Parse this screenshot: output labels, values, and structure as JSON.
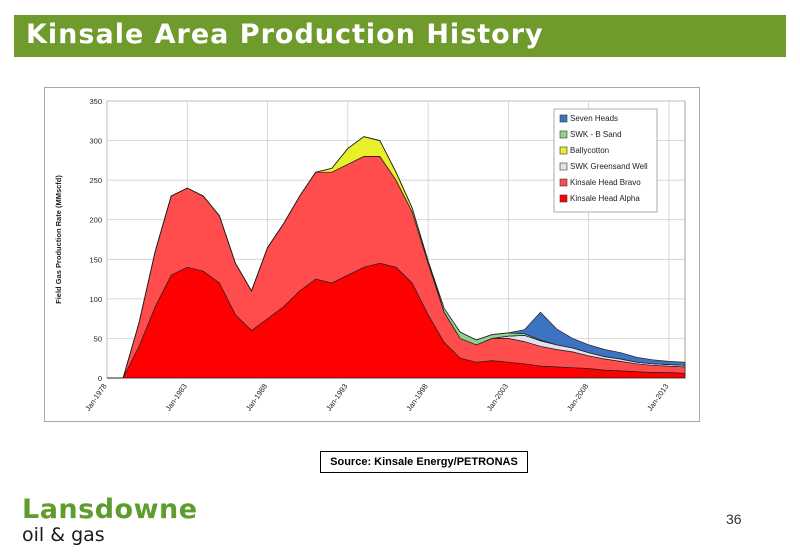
{
  "page": {
    "title": "Kinsale Area Production History",
    "source": "Source: Kinsale Energy/PETRONAS",
    "page_number": "36",
    "logo": {
      "main": "Lansdowne",
      "sub": "oil & gas"
    },
    "colors": {
      "title_bar": "#6f9a2c",
      "logo_green": "#5d9c2d"
    }
  },
  "chart_data": {
    "type": "area",
    "title": "",
    "xlabel": "",
    "ylabel": "Field Gas Production Rate (MMscfd)",
    "ylim": [
      0,
      350
    ],
    "yticks": [
      0,
      50,
      100,
      150,
      200,
      250,
      300,
      350
    ],
    "xlim": [
      1978,
      2014
    ],
    "xticks": [
      {
        "label": "Jan-1978",
        "value": 1978
      },
      {
        "label": "Jan-1983",
        "value": 1983
      },
      {
        "label": "Jan-1988",
        "value": 1988
      },
      {
        "label": "Jan-1993",
        "value": 1993
      },
      {
        "label": "Jan-1998",
        "value": 1998
      },
      {
        "label": "Jan-2003",
        "value": 2003
      },
      {
        "label": "Jan-2008",
        "value": 2008
      },
      {
        "label": "Jan-2013",
        "value": 2013
      }
    ],
    "stacked": true,
    "grid": true,
    "legend_position": "top-right",
    "x": [
      1978,
      1979,
      1980,
      1981,
      1982,
      1983,
      1984,
      1985,
      1986,
      1987,
      1988,
      1989,
      1990,
      1991,
      1992,
      1993,
      1994,
      1995,
      1996,
      1997,
      1998,
      1999,
      2000,
      2001,
      2002,
      2003,
      2004,
      2005,
      2006,
      2007,
      2008,
      2009,
      2010,
      2011,
      2012,
      2013,
      2014
    ],
    "series": [
      {
        "name": "Kinsale Head Alpha",
        "color": "#ff0000",
        "values": [
          0,
          0,
          40,
          90,
          130,
          140,
          135,
          120,
          80,
          60,
          75,
          90,
          110,
          125,
          120,
          130,
          140,
          145,
          140,
          120,
          80,
          45,
          25,
          20,
          22,
          20,
          18,
          15,
          14,
          13,
          12,
          10,
          9,
          8,
          7,
          7,
          6
        ]
      },
      {
        "name": "Kinsale Head Bravo",
        "color": "#ff4d4d",
        "values": [
          0,
          0,
          30,
          70,
          100,
          100,
          95,
          85,
          65,
          50,
          90,
          105,
          120,
          135,
          140,
          140,
          140,
          135,
          110,
          90,
          65,
          38,
          25,
          22,
          28,
          30,
          28,
          25,
          22,
          20,
          16,
          14,
          12,
          10,
          9,
          8,
          8
        ]
      },
      {
        "name": "SWK Greensand Well",
        "color": "#e2e2ee",
        "values": [
          0,
          0,
          0,
          0,
          0,
          0,
          0,
          0,
          0,
          0,
          0,
          0,
          0,
          0,
          0,
          0,
          0,
          0,
          0,
          0,
          0,
          0,
          0,
          0,
          0,
          3,
          8,
          7,
          6,
          5,
          4,
          3,
          3,
          2,
          2,
          2,
          2
        ]
      },
      {
        "name": "Ballycotton",
        "color": "#e9ef2a",
        "values": [
          0,
          0,
          0,
          0,
          0,
          0,
          0,
          0,
          0,
          0,
          0,
          0,
          0,
          0,
          5,
          20,
          25,
          20,
          10,
          5,
          3,
          0,
          0,
          0,
          0,
          0,
          0,
          0,
          0,
          0,
          0,
          0,
          0,
          0,
          0,
          0,
          0
        ]
      },
      {
        "name": "SWK - B Sand",
        "color": "#8fd18f",
        "values": [
          0,
          0,
          0,
          0,
          0,
          0,
          0,
          0,
          0,
          0,
          0,
          0,
          0,
          0,
          0,
          0,
          0,
          0,
          0,
          0,
          0,
          5,
          8,
          6,
          5,
          4,
          2,
          1,
          0,
          0,
          0,
          0,
          0,
          0,
          0,
          0,
          0
        ]
      },
      {
        "name": "Seven Heads",
        "color": "#3d74c2",
        "values": [
          0,
          0,
          0,
          0,
          0,
          0,
          0,
          0,
          0,
          0,
          0,
          0,
          0,
          0,
          0,
          0,
          0,
          0,
          0,
          0,
          0,
          0,
          0,
          0,
          0,
          0,
          5,
          35,
          20,
          12,
          10,
          9,
          8,
          6,
          5,
          4,
          4
        ]
      }
    ]
  }
}
